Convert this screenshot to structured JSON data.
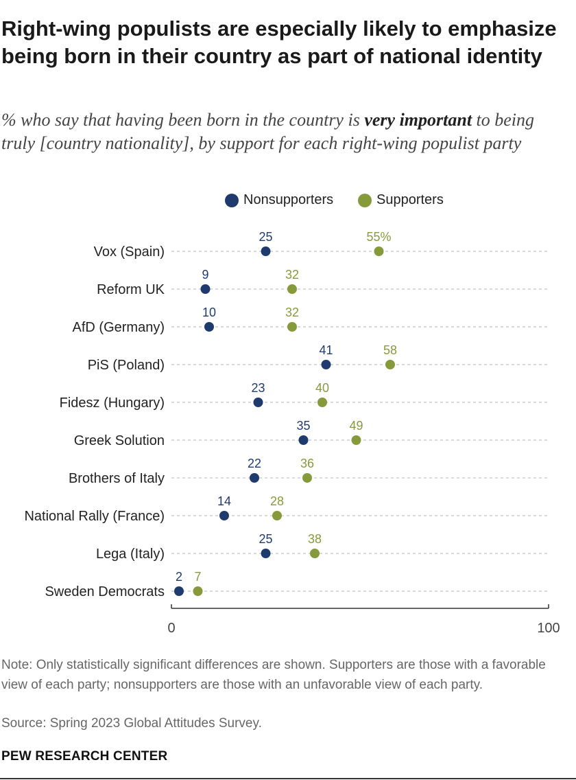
{
  "title": "Right-wing populists are especially likely to emphasize being born in their country as part of national identity",
  "subtitle": {
    "before": "% who say that having been born in the country is ",
    "emphasis": "very important",
    "after": " to being truly [country nationality], by support for each right-wing populist party"
  },
  "colors": {
    "nonsupporters": "#1f3b6e",
    "supporters": "#879a3b",
    "gridline": "#d9d9d9",
    "axis": "#333333"
  },
  "chart_data": {
    "type": "scatter",
    "categories": [
      "Vox (Spain)",
      "Reform UK",
      "AfD (Germany)",
      "PiS (Poland)",
      "Fidesz (Hungary)",
      "Greek Solution",
      "Brothers of Italy",
      "National Rally (France)",
      "Lega (Italy)",
      "Sweden Democrats"
    ],
    "series": [
      {
        "name": "Nonsupporters",
        "values": [
          25,
          9,
          10,
          41,
          23,
          35,
          22,
          14,
          25,
          2
        ]
      },
      {
        "name": "Supporters",
        "values": [
          55,
          32,
          32,
          58,
          40,
          49,
          36,
          28,
          38,
          7
        ]
      }
    ],
    "first_supporter_label_suffix": "%",
    "xlim": [
      0,
      100
    ],
    "xticks": [
      "0",
      "100"
    ],
    "grid": "dotted horizontal",
    "legend_position": "top"
  },
  "note": "Note: Only statistically significant differences are shown. Supporters are those with a favorable view of each party; nonsupporters are those with an unfavorable view of each party.",
  "source": "Source: Spring 2023 Global Attitudes Survey.",
  "brand": "PEW RESEARCH CENTER"
}
